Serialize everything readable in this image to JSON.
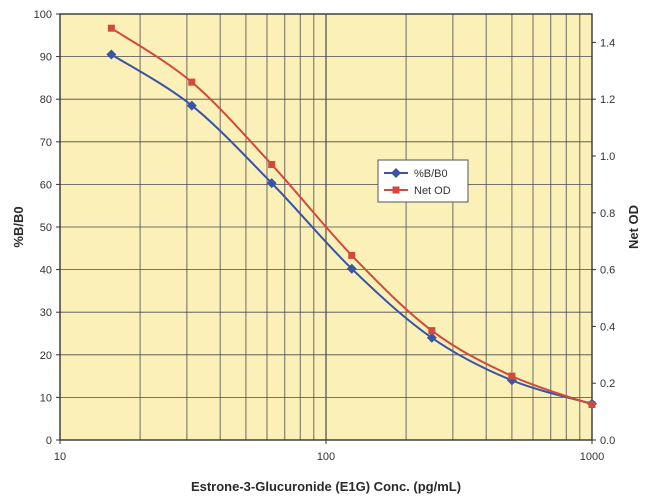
{
  "chart_data": {
    "type": "line",
    "xscale": "log",
    "xlim": [
      10,
      1000
    ],
    "x_ticks": [
      "10",
      "100",
      "1000"
    ],
    "xlabel": "Estrone-3-Glucuronide (E1G) Conc. (pg/mL)",
    "ylabel_left": "%B/B0",
    "ylabel_right": "Net OD",
    "ylim_left": [
      0,
      100
    ],
    "ylim_right": [
      0,
      1.5
    ],
    "y_ticks_left": [
      "0",
      "10",
      "20",
      "30",
      "40",
      "50",
      "60",
      "70",
      "80",
      "90",
      "100"
    ],
    "y_ticks_right": [
      "0.0",
      "0.2",
      "0.4",
      "0.6",
      "0.8",
      "1.0",
      "1.2",
      "1.4"
    ],
    "grid": true,
    "legend_position": "center-right",
    "plot_background": "#fbf0b8",
    "series": [
      {
        "name": "%B/B0",
        "axis": "left",
        "color": "#3a55a4",
        "marker": "diamond",
        "points": [
          [
            15.6,
            90.5
          ],
          [
            31.3,
            78.5
          ],
          [
            62.5,
            60.3
          ],
          [
            125,
            40.2
          ],
          [
            250,
            24
          ],
          [
            500,
            14
          ],
          [
            1000,
            8.5
          ]
        ]
      },
      {
        "name": "Net OD",
        "axis": "right",
        "color": "#d24a3a",
        "marker": "square",
        "points": [
          [
            15.6,
            1.45
          ],
          [
            31.3,
            1.26
          ],
          [
            62.5,
            0.97
          ],
          [
            125,
            0.65
          ],
          [
            250,
            0.385
          ],
          [
            500,
            0.225
          ],
          [
            1000,
            0.125
          ]
        ]
      }
    ]
  }
}
